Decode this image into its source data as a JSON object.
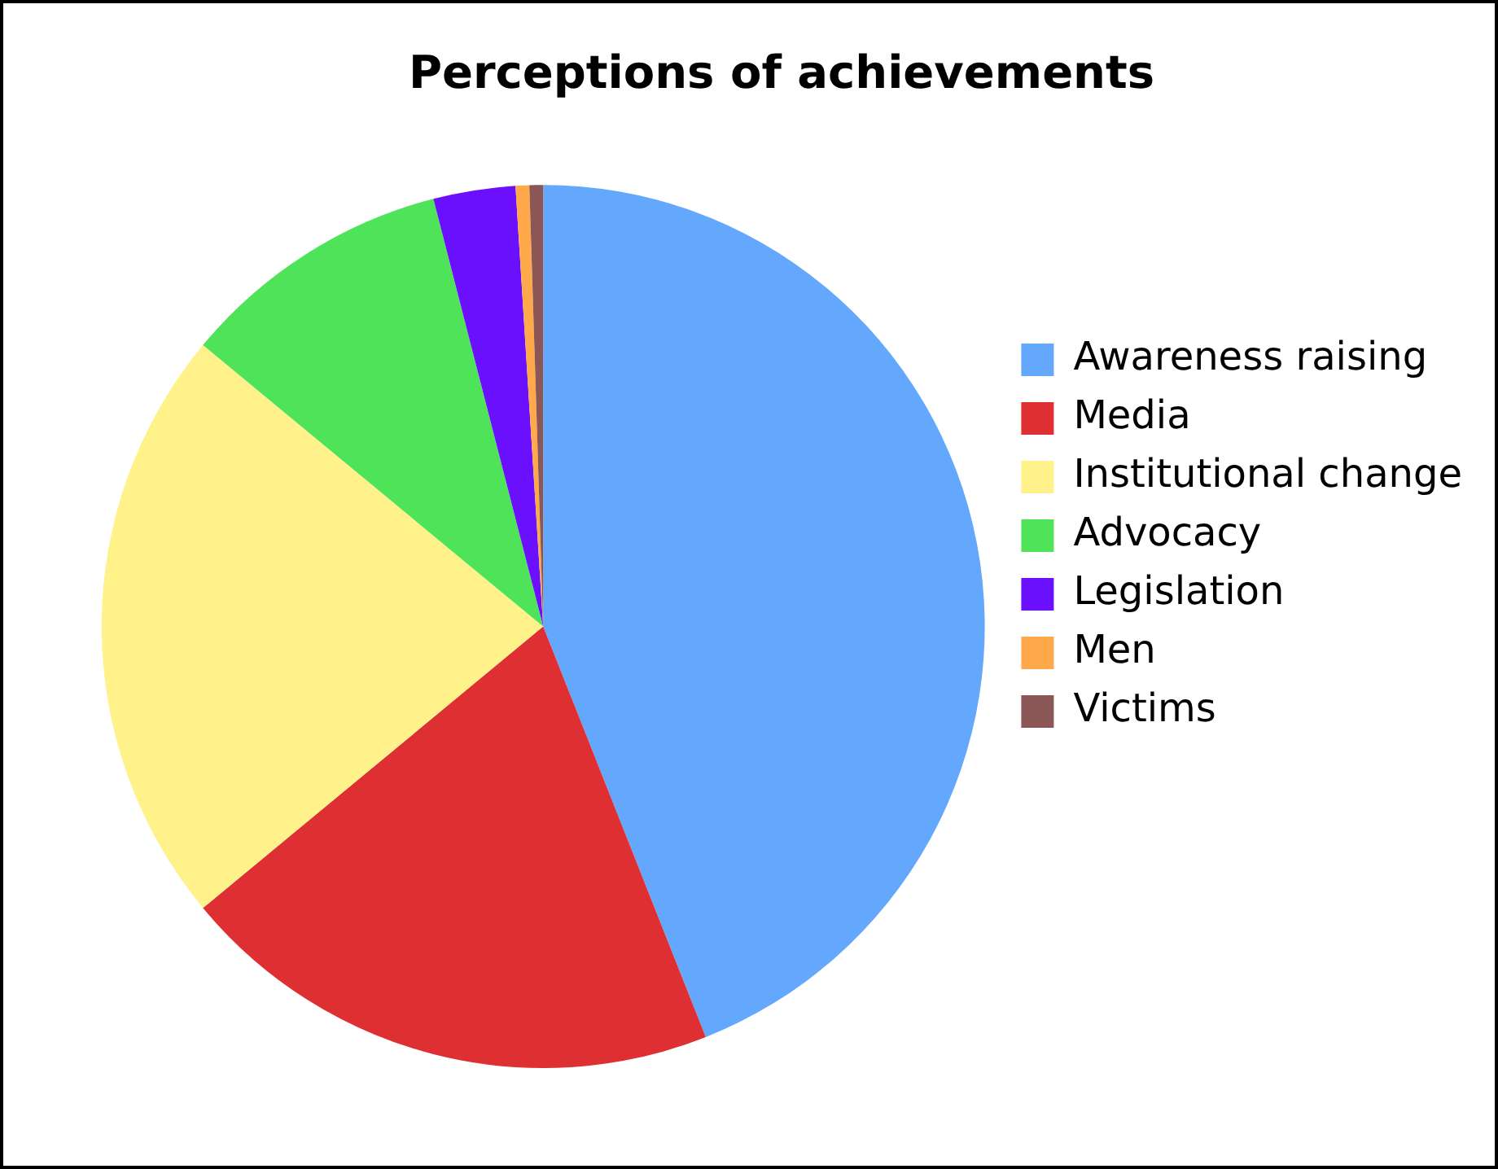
{
  "chart_data": {
    "type": "pie",
    "title": "Perceptions of achievements",
    "categories": [
      "Awareness raising",
      "Media",
      "Institutional change",
      "Advocacy",
      "Legislation",
      "Men",
      "Victims"
    ],
    "values": [
      44,
      20,
      22,
      10,
      3,
      0.5,
      0.5
    ],
    "colors": [
      "#63a8fd",
      "#de2f33",
      "#fff28b",
      "#4fe35a",
      "#6a10fc",
      "#ffa94a",
      "#8a5656"
    ],
    "legend": "right"
  }
}
